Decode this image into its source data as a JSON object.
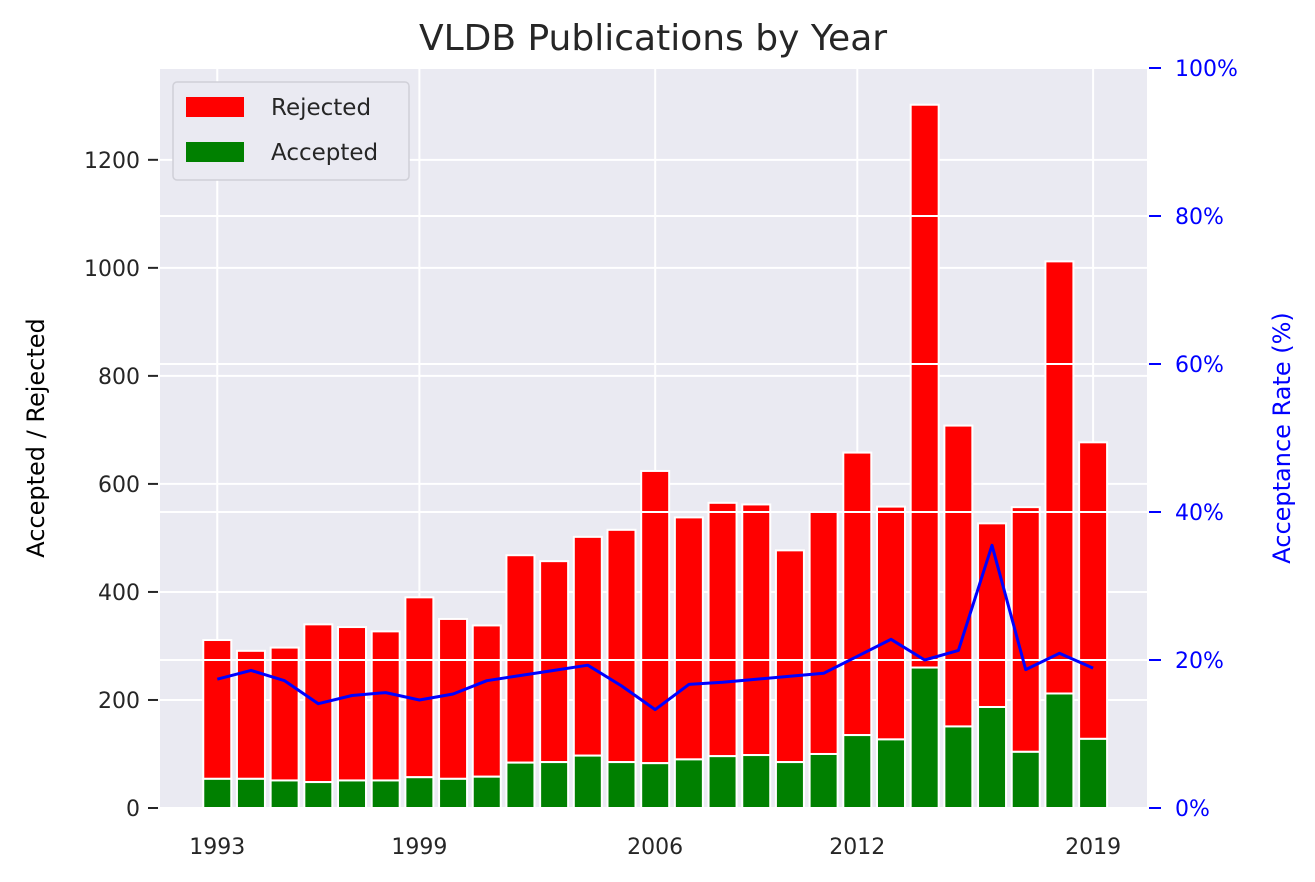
{
  "chart_data": {
    "type": "bar",
    "title": "VLDB Publications by Year",
    "ylabel": "Accepted / Rejected",
    "ylabel_right": "Acceptance Rate (%)",
    "x": [
      1993,
      1994,
      1995,
      1996,
      1997,
      1998,
      1999,
      2000,
      2001,
      2002,
      2003,
      2004,
      2005,
      2006,
      2007,
      2008,
      2009,
      2010,
      2011,
      2012,
      2013,
      2014,
      2015,
      2016,
      2017,
      2018,
      2019
    ],
    "xticks": [
      "1993",
      "1999",
      "2006",
      "2012",
      "2019"
    ],
    "xtick_values": [
      1993,
      1999,
      2006,
      2012,
      2019
    ],
    "ylim": [
      0,
      1370
    ],
    "yticks": [
      "0",
      "200",
      "400",
      "600",
      "800",
      "1000",
      "1200"
    ],
    "ytick_values": [
      0,
      200,
      400,
      600,
      800,
      1000,
      1200
    ],
    "ylim_right": [
      0,
      100
    ],
    "yticks_right": [
      "0%",
      "20%",
      "40%",
      "60%",
      "80%",
      "100%"
    ],
    "ytick_values_right": [
      0,
      20,
      40,
      60,
      80,
      100
    ],
    "series": [
      {
        "name": "Accepted",
        "color": "#008000",
        "values": [
          54,
          54,
          51,
          48,
          51,
          51,
          57,
          54,
          58,
          84,
          85,
          97,
          85,
          83,
          90,
          96,
          98,
          85,
          100,
          135,
          127,
          260,
          151,
          187,
          104,
          212,
          128
        ]
      },
      {
        "name": "Rejected",
        "color": "#ff0000",
        "total": [
          311,
          291,
          297,
          340,
          335,
          327,
          390,
          350,
          338,
          468,
          457,
          502,
          515,
          624,
          538,
          565,
          562,
          477,
          548,
          658,
          558,
          1302,
          708,
          527,
          557,
          1012,
          677
        ]
      },
      {
        "name": "Acceptance Rate (%)",
        "color": "#0000ff",
        "axis": "right",
        "values": [
          17.4,
          18.6,
          17.2,
          14.1,
          15.2,
          15.6,
          14.6,
          15.4,
          17.2,
          17.9,
          18.6,
          19.3,
          16.5,
          13.3,
          16.7,
          17.0,
          17.4,
          17.8,
          18.2,
          20.5,
          22.8,
          20.0,
          21.3,
          35.5,
          18.7,
          20.9,
          18.9
        ]
      }
    ],
    "legend": {
      "position": "top-left",
      "entries": [
        "Rejected",
        "Accepted"
      ]
    },
    "grid": true,
    "colors": {
      "background": "#eaeaf2",
      "grid": "#ffffff",
      "accepted": "#008000",
      "rejected": "#ff0000",
      "rate_line": "#0000ff"
    }
  }
}
